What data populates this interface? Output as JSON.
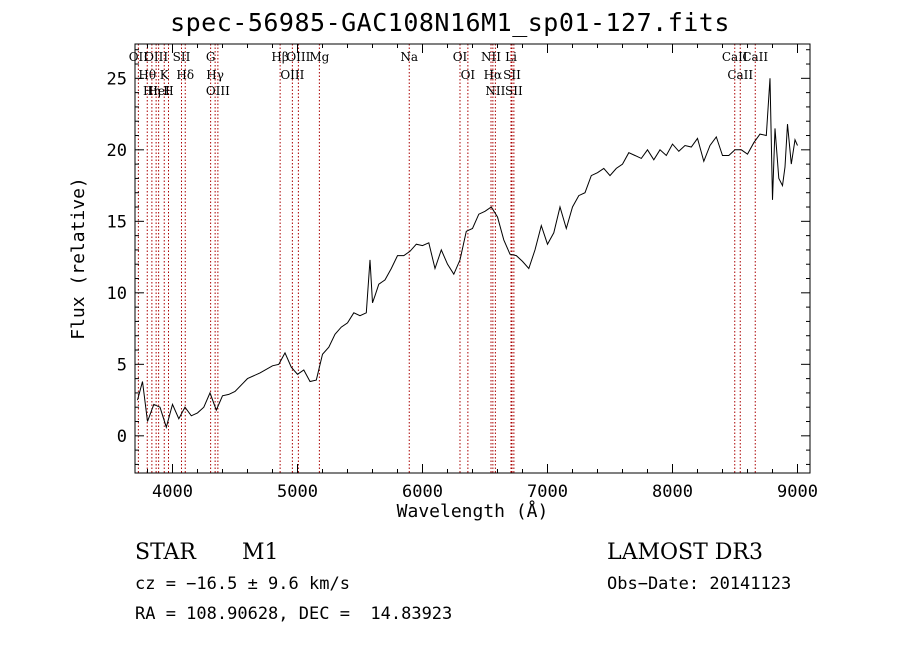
{
  "chart_data": {
    "type": "line",
    "title": "spec-56985-GAC108N16M1_sp01-127.fits",
    "xlabel": "Wavelength (Å)",
    "ylabel": "Flux (relative)",
    "xlim": [
      3700,
      9100
    ],
    "ylim": [
      -2.6,
      27.4
    ],
    "xticks": [
      4000,
      5000,
      6000,
      7000,
      8000,
      9000
    ],
    "yticks": [
      0,
      5,
      10,
      15,
      20,
      25
    ],
    "grid": false,
    "line_color": "#000000",
    "marker_color": "#aa0000",
    "series": [
      {
        "x": [
          3720,
          3760,
          3800,
          3850,
          3900,
          3950,
          4000,
          4050,
          4100,
          4150,
          4200,
          4250,
          4300,
          4350,
          4400,
          4450,
          4500,
          4600,
          4700,
          4800,
          4850,
          4900,
          4950,
          5000,
          5050,
          5100,
          5150,
          5200,
          5250,
          5300,
          5350,
          5400,
          5450,
          5500,
          5550,
          5580,
          5600,
          5620,
          5650,
          5700,
          5750,
          5800,
          5850,
          5900,
          5950,
          6000,
          6050,
          6100,
          6150,
          6200,
          6250,
          6300,
          6350,
          6400,
          6450,
          6500,
          6550,
          6600,
          6650,
          6700,
          6750,
          6800,
          6850,
          6900,
          6950,
          7000,
          7050,
          7100,
          7150,
          7200,
          7250,
          7300,
          7350,
          7400,
          7450,
          7500,
          7550,
          7600,
          7650,
          7700,
          7750,
          7800,
          7850,
          7900,
          7950,
          8000,
          8050,
          8100,
          8150,
          8200,
          8250,
          8300,
          8350,
          8400,
          8450,
          8500,
          8550,
          8600,
          8650,
          8700,
          8750,
          8780,
          8800,
          8820,
          8850,
          8880,
          8900,
          8920,
          8950,
          8980,
          9000
        ],
        "y": [
          2.5,
          3.8,
          1.0,
          2.2,
          2.0,
          0.6,
          2.2,
          1.2,
          2.0,
          1.4,
          1.6,
          2.0,
          3.0,
          1.8,
          2.8,
          2.9,
          3.1,
          4.0,
          4.4,
          4.9,
          5.0,
          5.8,
          4.8,
          4.3,
          4.6,
          3.8,
          3.9,
          5.7,
          6.2,
          7.1,
          7.6,
          7.9,
          8.6,
          8.4,
          8.6,
          12.3,
          9.3,
          9.8,
          10.6,
          10.9,
          11.7,
          12.6,
          12.6,
          12.9,
          13.4,
          13.3,
          13.5,
          11.7,
          13.0,
          12.0,
          11.3,
          12.3,
          14.3,
          14.5,
          15.5,
          15.7,
          16.0,
          15.3,
          13.7,
          12.7,
          12.6,
          12.2,
          11.7,
          13.0,
          14.7,
          13.4,
          14.2,
          16.0,
          14.5,
          16.0,
          16.8,
          17.0,
          18.2,
          18.4,
          18.7,
          18.2,
          18.7,
          19.0,
          19.8,
          19.6,
          19.4,
          20.0,
          19.3,
          20.0,
          19.6,
          20.4,
          19.9,
          20.3,
          20.2,
          20.8,
          19.2,
          20.3,
          20.9,
          19.6,
          19.6,
          20.0,
          20.0,
          19.7,
          20.5,
          21.1,
          21.0,
          25.0,
          16.5,
          21.5,
          18.0,
          17.5,
          18.8,
          21.8,
          19.0,
          20.7,
          20.3
        ]
      }
    ],
    "lines": [
      {
        "label": "Hθ",
        "x": 3798
      },
      {
        "label": "OII",
        "x": 3727
      },
      {
        "label": "OIII",
        "x": 3869
      },
      {
        "label": "K",
        "x": 3934
      },
      {
        "label": "H",
        "x": 3968
      },
      {
        "label": "Hη",
        "x": 3835
      },
      {
        "label": "HeI",
        "x": 3889
      },
      {
        "label": "Hδ",
        "x": 4102
      },
      {
        "label": "SII",
        "x": 4072
      },
      {
        "label": "OIII",
        "x": 4363
      },
      {
        "label": "Hγ",
        "x": 4341
      },
      {
        "label": "G",
        "x": 4305
      },
      {
        "label": "Hβ",
        "x": 4861
      },
      {
        "label": "OIII",
        "x": 5007
      },
      {
        "label": "OIII",
        "x": 4959
      },
      {
        "label": "Mg",
        "x": 5175
      },
      {
        "label": "Na",
        "x": 5894
      },
      {
        "label": "OI",
        "x": 6300
      },
      {
        "label": "OI",
        "x": 6363
      },
      {
        "label": "Hα",
        "x": 6563
      },
      {
        "label": "NII",
        "x": 6548
      },
      {
        "label": "NII",
        "x": 6583
      },
      {
        "label": "SII",
        "x": 6716
      },
      {
        "label": "Li",
        "x": 6708
      },
      {
        "label": "SII",
        "x": 6731
      },
      {
        "label": "CaII",
        "x": 8498
      },
      {
        "label": "CaII",
        "x": 8542
      },
      {
        "label": "CaII",
        "x": 8662
      }
    ]
  },
  "info": {
    "object_class": "STAR",
    "subclass": "M1",
    "survey": "LAMOST DR3",
    "cz": "cz = −16.5 ± 9.6 km/s",
    "obs_date": "Obs−Date: 20141123",
    "coords": "RA = 108.90628, DEC =  14.83923"
  }
}
